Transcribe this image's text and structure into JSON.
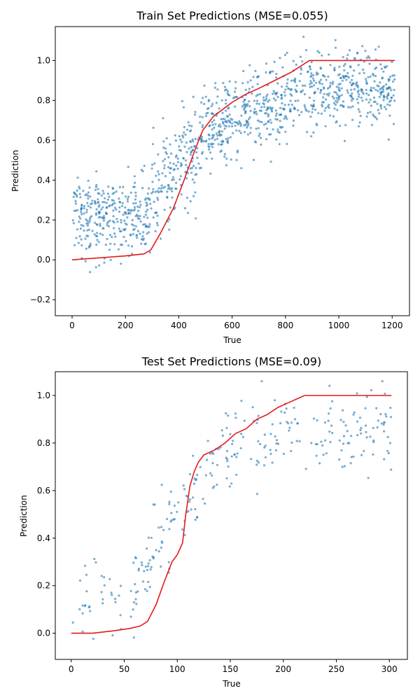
{
  "chart_data": [
    {
      "type": "scatter",
      "title": "Train Set Predictions (MSE=0.055)",
      "xlabel": "True",
      "ylabel": "Prediction",
      "xlim": [
        -63,
        1265
      ],
      "ylim": [
        -0.28,
        1.17
      ],
      "xticks": [
        0,
        200,
        400,
        600,
        800,
        1000,
        1200
      ],
      "yticks": [
        -0.2,
        0.0,
        0.2,
        0.4,
        0.6,
        0.8,
        1.0
      ],
      "ytick_labels": [
        "−0.2",
        "0.0",
        "0.2",
        "0.4",
        "0.6",
        "0.8",
        "1.0"
      ],
      "grid": false,
      "point_color": "#1f77b4",
      "line_color": "#e41a1c",
      "scatter": {
        "n": 1210,
        "seed": 7,
        "segments": [
          {
            "x": [
              0,
              290
            ],
            "center": [
              0.2,
              0.22
            ],
            "spread": 0.2
          },
          {
            "x": [
              290,
              520
            ],
            "center": [
              0.3,
              0.65
            ],
            "spread": 0.24
          },
          {
            "x": [
              520,
              880
            ],
            "center": [
              0.68,
              0.84
            ],
            "spread": 0.2
          },
          {
            "x": [
              880,
              1210
            ],
            "center": [
              0.84,
              0.86
            ],
            "spread": 0.18
          }
        ]
      },
      "line": {
        "x": [
          0,
          100,
          200,
          270,
          295,
          330,
          380,
          420,
          460,
          490,
          530,
          600,
          650,
          700,
          760,
          820,
          890,
          1210
        ],
        "y": [
          0.0,
          0.01,
          0.02,
          0.03,
          0.05,
          0.13,
          0.26,
          0.4,
          0.55,
          0.65,
          0.72,
          0.79,
          0.83,
          0.86,
          0.9,
          0.94,
          1.0,
          1.0
        ]
      }
    },
    {
      "type": "scatter",
      "title": "Test Set Predictions (MSE=0.09)",
      "xlabel": "True",
      "ylabel": "Prediction",
      "xlim": [
        -15,
        317
      ],
      "ylim": [
        -0.11,
        1.1
      ],
      "xticks": [
        0,
        50,
        100,
        150,
        200,
        250,
        300
      ],
      "yticks": [
        0.0,
        0.2,
        0.4,
        0.6,
        0.8,
        1.0
      ],
      "ytick_labels": [
        "0.0",
        "0.2",
        "0.4",
        "0.6",
        "0.8",
        "1.0"
      ],
      "grid": false,
      "point_color": "#1f77b4",
      "line_color": "#e41a1c",
      "scatter": {
        "n": 302,
        "seed": 11,
        "segments": [
          {
            "x": [
              0,
              70
            ],
            "center": [
              0.14,
              0.22
            ],
            "spread": 0.17
          },
          {
            "x": [
              70,
              125
            ],
            "center": [
              0.3,
              0.66
            ],
            "spread": 0.2
          },
          {
            "x": [
              125,
              220
            ],
            "center": [
              0.72,
              0.86
            ],
            "spread": 0.18
          },
          {
            "x": [
              220,
              302
            ],
            "center": [
              0.82,
              0.86
            ],
            "spread": 0.18
          }
        ]
      },
      "line": {
        "x": [
          0,
          20,
          40,
          55,
          65,
          72,
          80,
          88,
          95,
          100,
          105,
          108,
          112,
          116,
          120,
          125,
          135,
          145,
          155,
          165,
          175,
          185,
          195,
          205,
          215,
          220,
          302
        ],
        "y": [
          0.0,
          0.0,
          0.01,
          0.02,
          0.03,
          0.05,
          0.12,
          0.22,
          0.3,
          0.33,
          0.38,
          0.5,
          0.62,
          0.68,
          0.72,
          0.75,
          0.77,
          0.8,
          0.84,
          0.86,
          0.9,
          0.92,
          0.95,
          0.97,
          0.99,
          1.0,
          1.0
        ]
      }
    }
  ]
}
